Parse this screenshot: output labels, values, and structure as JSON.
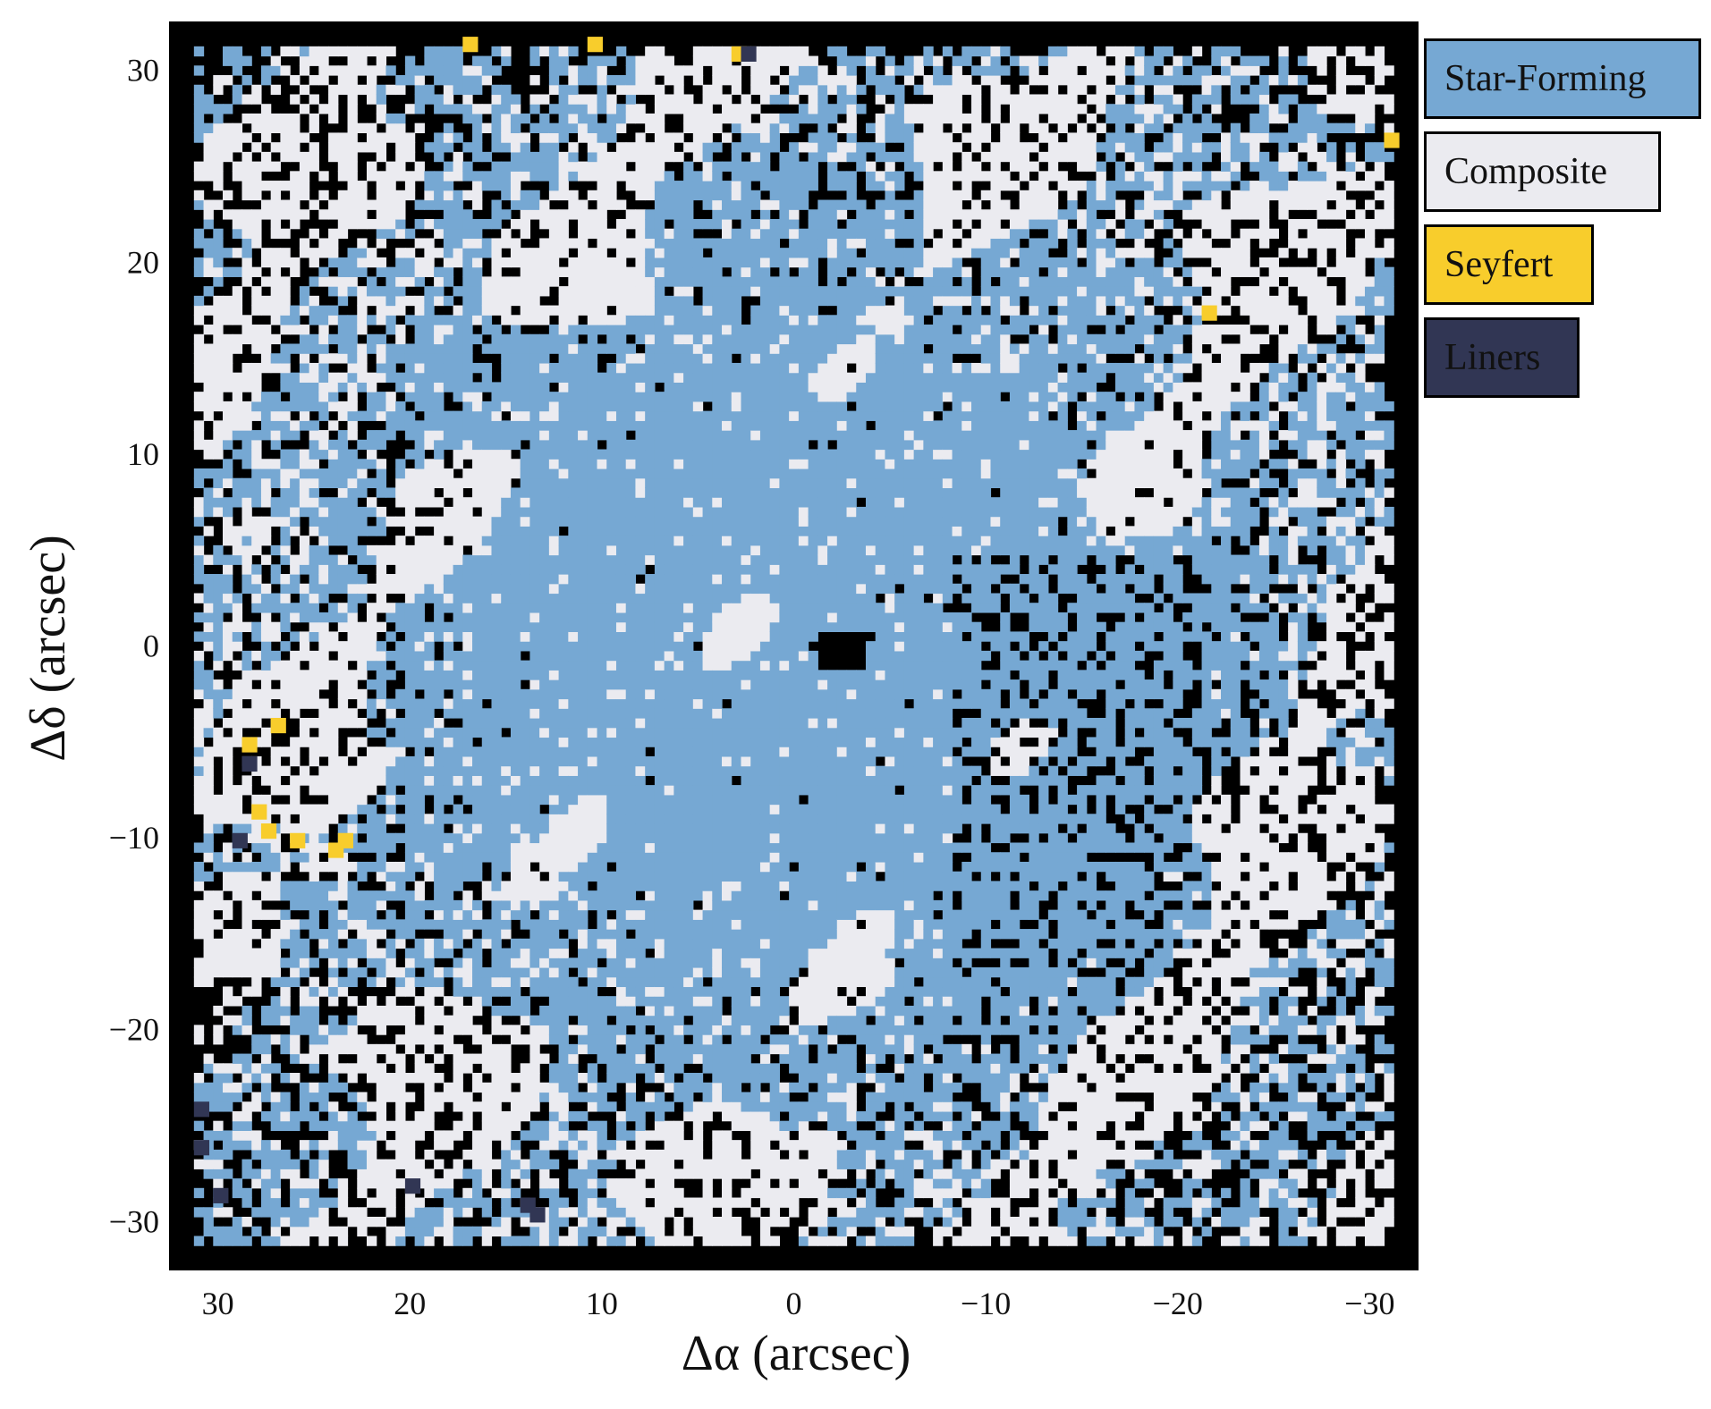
{
  "chart_data": {
    "type": "heatmap",
    "title": "",
    "xlabel": "Δα (arcsec)",
    "ylabel": "Δδ (arcsec)",
    "xlim": [
      32.5,
      -32.5
    ],
    "ylim": [
      -32.5,
      32.5
    ],
    "x_ticks": [
      30,
      20,
      10,
      0,
      -10,
      -20,
      -30
    ],
    "y_ticks": [
      30,
      20,
      10,
      0,
      -10,
      -20,
      -30
    ],
    "x_tick_labels": [
      "30",
      "20",
      "10",
      "0",
      "−10",
      "−20",
      "−30"
    ],
    "y_tick_labels": [
      "30",
      "20",
      "10",
      "0",
      "−10",
      "−20",
      "−30"
    ],
    "grid": false,
    "background_color": "#000000",
    "cell_size_arcsec": 0.5,
    "categories": [
      {
        "name": "Star-Forming",
        "color": "#76a8d3"
      },
      {
        "name": "Composite",
        "color": "#ebebf0"
      },
      {
        "name": "Seyfert",
        "color": "#f8cd2c"
      },
      {
        "name": "Liners",
        "color": "#313654"
      }
    ],
    "legend_placement": "outside top-right",
    "regions": {
      "description_note": "spaxel classification map; dominant Star-Forming centre, Composite and unclassified (black) spaxels toward edges",
      "seyfert_spaxels": [
        [
          28.5,
          -5.0
        ],
        [
          27.0,
          -4.0
        ],
        [
          28.0,
          -8.5
        ],
        [
          27.5,
          -9.5
        ],
        [
          26.0,
          -10.0
        ],
        [
          24.0,
          -10.5
        ],
        [
          23.5,
          -10.0
        ],
        [
          17.0,
          31.5
        ],
        [
          10.5,
          31.5
        ],
        [
          3.0,
          31.0
        ],
        [
          -21.5,
          17.5
        ],
        [
          -31.0,
          26.5
        ]
      ],
      "liner_spaxels": [
        [
          28.5,
          -6.0
        ],
        [
          29.0,
          -10.0
        ],
        [
          31.0,
          -24.0
        ],
        [
          31.0,
          -26.0
        ],
        [
          30.0,
          -28.5
        ],
        [
          20.0,
          -28.0
        ],
        [
          14.0,
          -29.0
        ],
        [
          13.5,
          -29.5
        ],
        [
          2.5,
          31.0
        ]
      ]
    }
  },
  "legend": {
    "items": [
      {
        "label": "Star-Forming",
        "color": "#76a8d3"
      },
      {
        "label": "Composite",
        "color": "#ebebf0"
      },
      {
        "label": "Seyfert",
        "color": "#f8cd2c"
      },
      {
        "label": "Liners",
        "color": "#313654"
      }
    ]
  }
}
